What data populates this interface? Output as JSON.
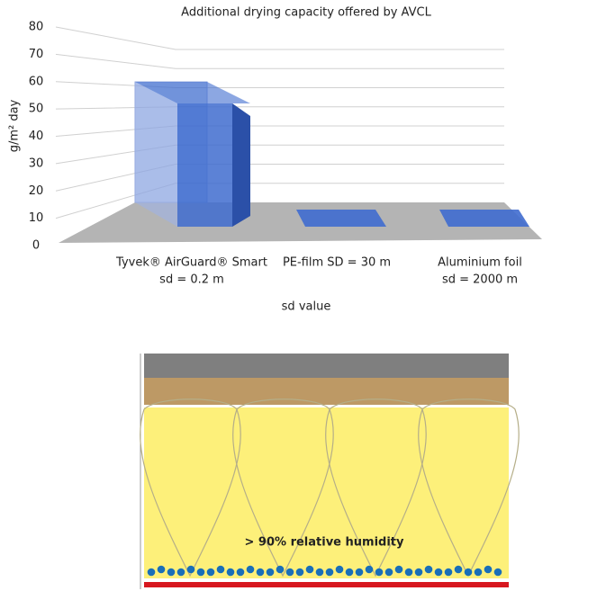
{
  "chart_data": {
    "type": "bar3d",
    "title": "Additional drying capacity offered by AVCL",
    "y_label": "g/m² day",
    "x_label": "sd value",
    "categories": [
      [
        "Tyvek® AirGuard® Smart",
        "sd = 0.2 m"
      ],
      [
        "PE-film SD = 30 m"
      ],
      [
        "Aluminium foil",
        "sd = 2000 m"
      ]
    ],
    "values": [
      65,
      0,
      0
    ],
    "color": "#3f6ccf",
    "ylim": [
      0,
      80
    ],
    "yticks": [
      0,
      10,
      20,
      30,
      40,
      50,
      60,
      70,
      80
    ],
    "grid": true
  },
  "diagram": {
    "label": "> 90% relative humidity"
  }
}
